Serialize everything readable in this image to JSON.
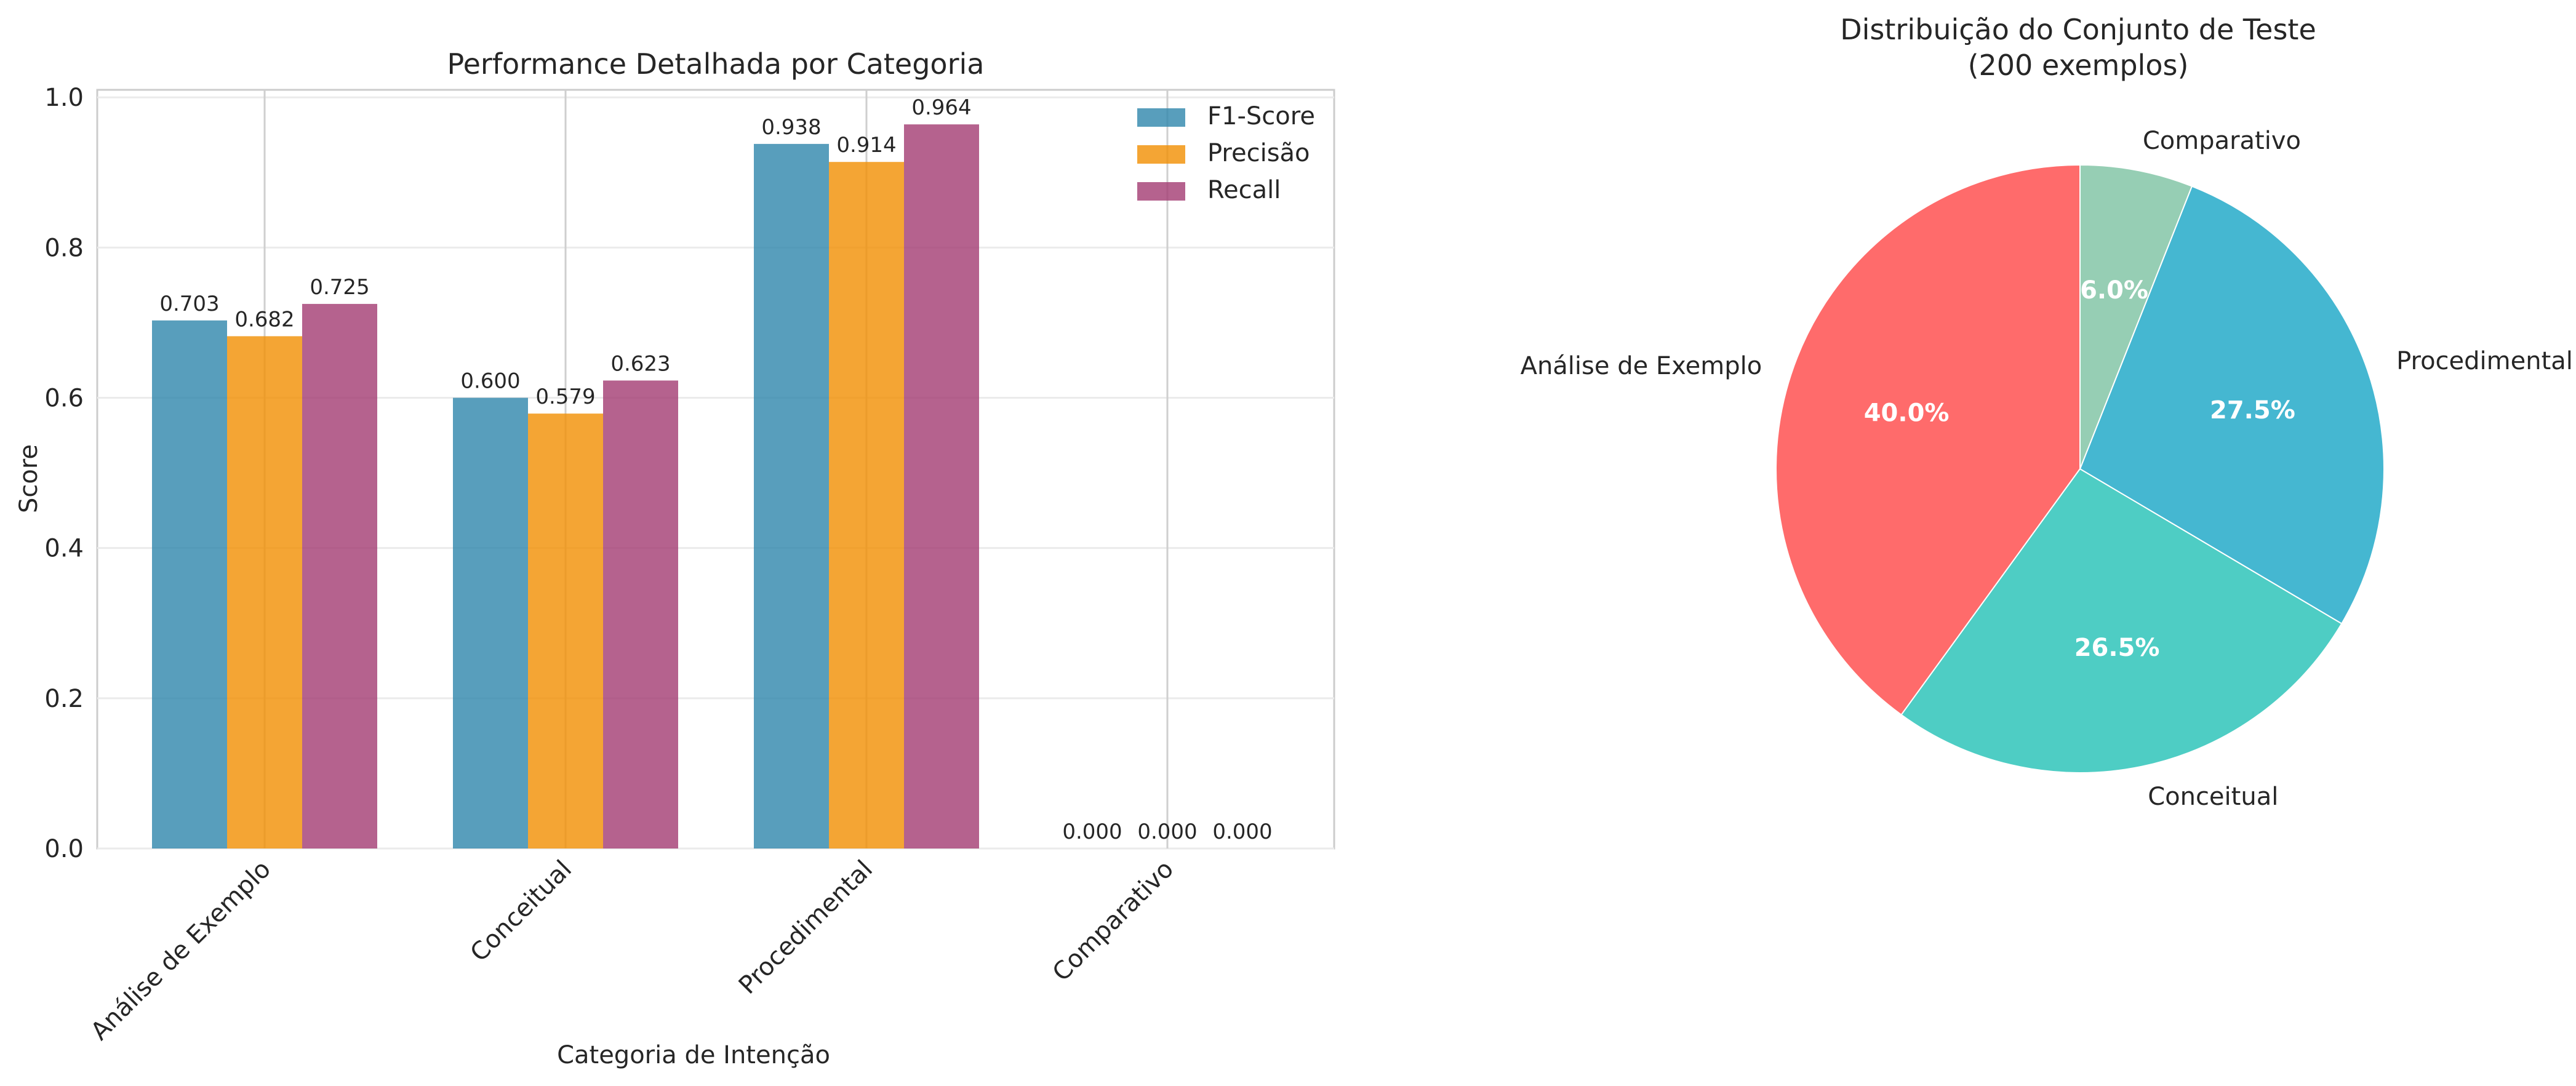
{
  "chart_data": [
    {
      "type": "bar",
      "title": "Performance Detalhada por Categoria",
      "xlabel": "Categoria de Intenção",
      "ylabel": "Score",
      "categories": [
        "Análise de Exemplo",
        "Conceitual",
        "Procedimental",
        "Comparativo"
      ],
      "series": [
        {
          "name": "F1-Score",
          "color": "#2E86AB",
          "values": [
            0.703,
            0.6,
            0.938,
            0.0
          ],
          "labels": [
            "0.703",
            "0.600",
            "0.938",
            "0.000"
          ]
        },
        {
          "name": "Precisão",
          "color": "#F18F01",
          "values": [
            0.682,
            0.579,
            0.914,
            0.0
          ],
          "labels": [
            "0.682",
            "0.579",
            "0.914",
            "0.000"
          ]
        },
        {
          "name": "Recall",
          "color": "#A23B72",
          "values": [
            0.725,
            0.623,
            0.964,
            0.0
          ],
          "labels": [
            "0.725",
            "0.623",
            "0.964",
            "0.000"
          ]
        }
      ],
      "yticks": [
        "0.0",
        "0.2",
        "0.4",
        "0.6",
        "0.8",
        "1.0"
      ],
      "ylim": [
        0,
        1.01
      ],
      "grid": true,
      "legend_position": "top-right"
    },
    {
      "type": "pie",
      "title": "Distribuição do Conjunto de Teste",
      "subtitle": "(200 exemplos)",
      "slices": [
        {
          "label": "Análise de Exemplo",
          "value": 40.0,
          "pct_label": "40.0%",
          "color": "#FF6B6B"
        },
        {
          "label": "Conceitual",
          "value": 26.5,
          "pct_label": "26.5%",
          "color": "#4ECDC4"
        },
        {
          "label": "Procedimental",
          "value": 27.5,
          "pct_label": "27.5%",
          "color": "#45B7D1"
        },
        {
          "label": "Comparativo",
          "value": 6.0,
          "pct_label": "6.0%",
          "color": "#96CEB4"
        }
      ],
      "start_angle": "top",
      "direction": "counterclockwise"
    }
  ]
}
